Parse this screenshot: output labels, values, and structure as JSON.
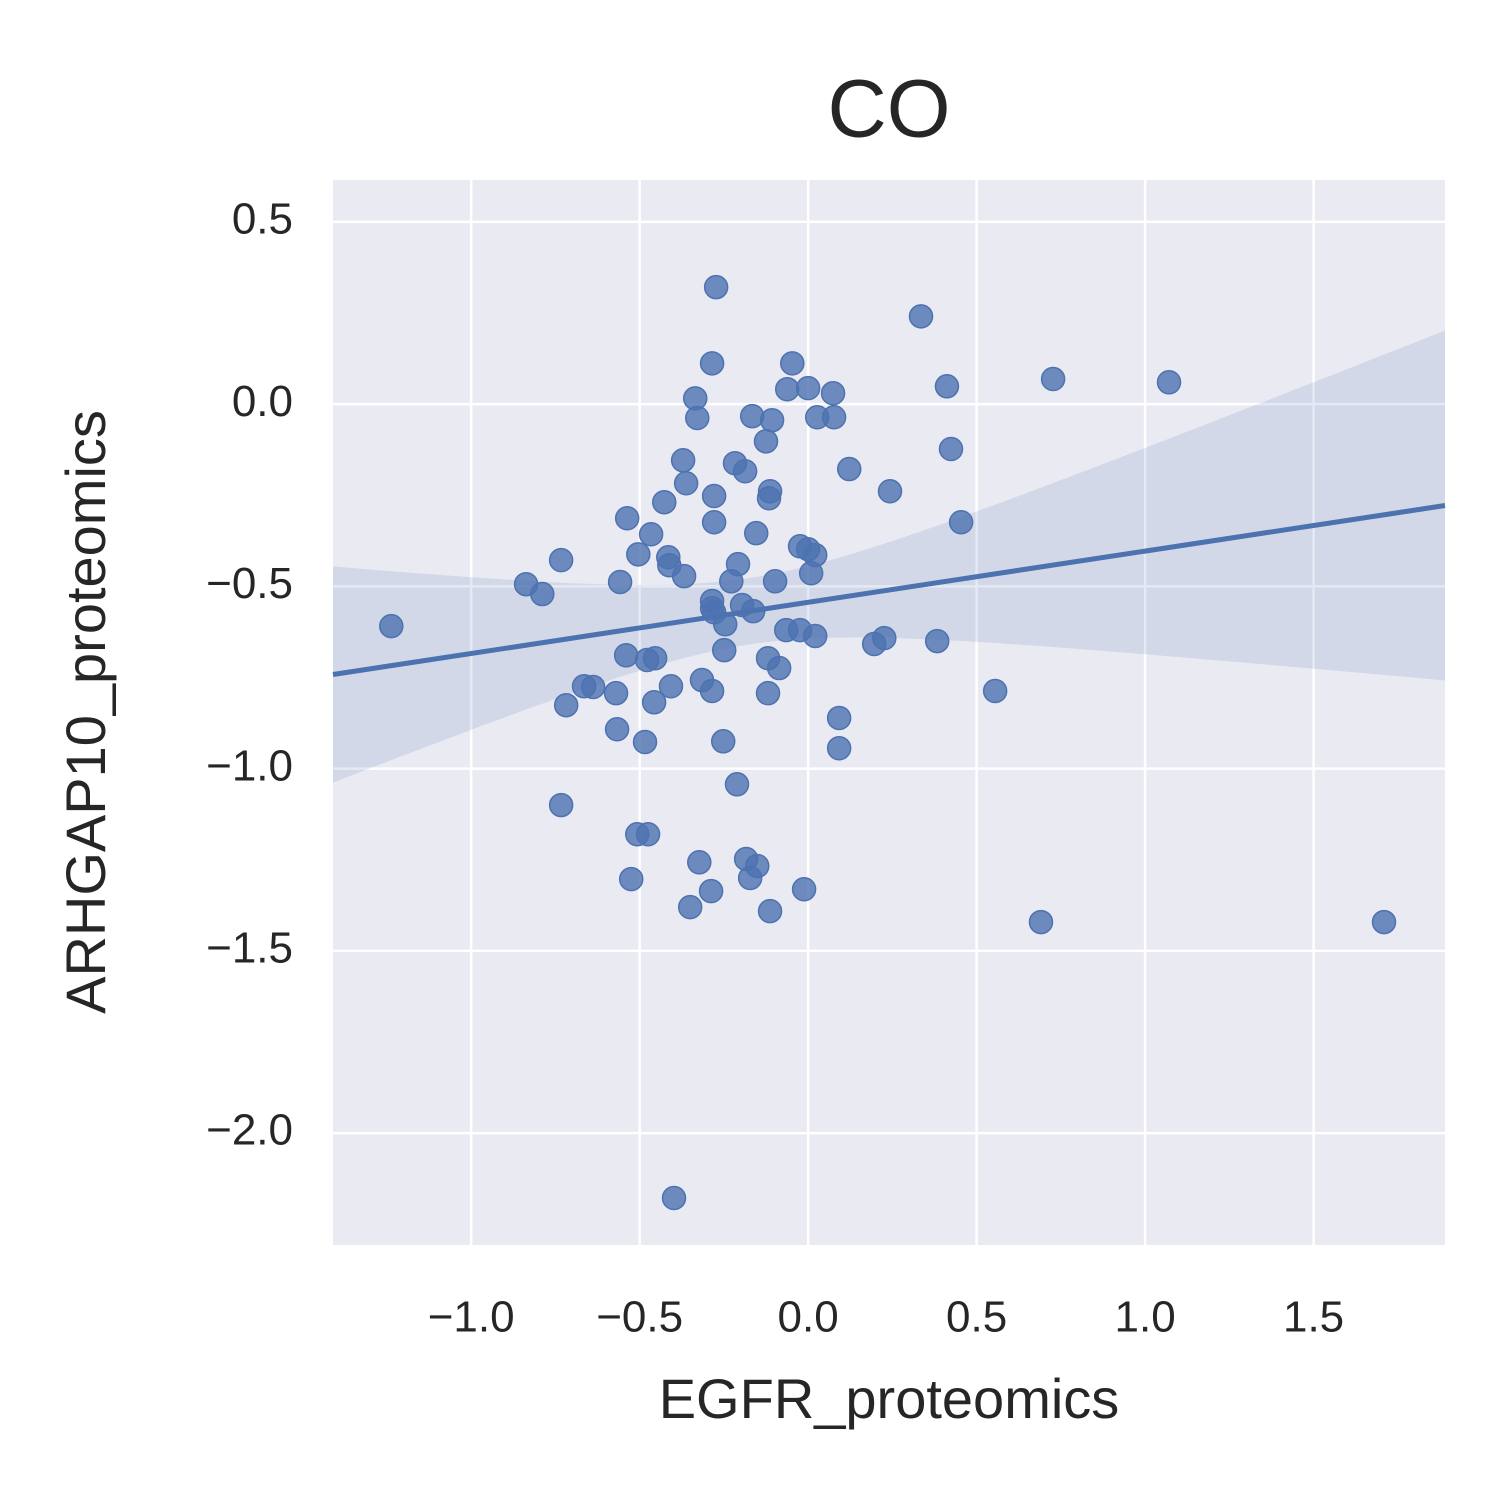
{
  "chart_data": {
    "type": "scatter",
    "title": "CO",
    "x_label": "EGFR_proteomics",
    "y_label": "ARHGAP10_proteomics",
    "color": "#4c72b0",
    "background": "#eaeaf2",
    "grid": true,
    "regression": true,
    "confidence_band": true,
    "xlim": [
      -1.41,
      1.89
    ],
    "ylim": [
      -2.307,
      0.615
    ],
    "xticks": [
      {
        "value": -1.0,
        "label": "−1.0"
      },
      {
        "value": -0.5,
        "label": "−0.5"
      },
      {
        "value": 0.0,
        "label": "0.0"
      },
      {
        "value": 0.5,
        "label": "0.5"
      },
      {
        "value": 1.0,
        "label": "1.0"
      },
      {
        "value": 1.5,
        "label": "1.5"
      }
    ],
    "yticks": [
      {
        "value": 0.5,
        "label": "0.5"
      },
      {
        "value": 0.0,
        "label": "0.0"
      },
      {
        "value": -0.5,
        "label": "−0.5"
      },
      {
        "value": -1.0,
        "label": "−1.0"
      },
      {
        "value": -1.5,
        "label": "−1.5"
      },
      {
        "value": -2.0,
        "label": "−2.0"
      }
    ],
    "x": [
      -1.237,
      -0.273,
      0.335,
      -0.285,
      -0.047,
      -0.062,
      0,
      0.074,
      0.412,
      0.727,
      1.071,
      -0.335,
      -0.329,
      -0.166,
      -0.107,
      0.027,
      0.077,
      -0.125,
      0.424,
      -0.371,
      -0.217,
      -0.187,
      0.122,
      -0.362,
      -0.113,
      -0.116,
      0.243,
      -0.279,
      -0.427,
      -0.537,
      -0.279,
      0.454,
      -0.154,
      -0.466,
      -0.024,
      0,
      0.021,
      -0.504,
      -0.415,
      -0.733,
      -0.412,
      -0.208,
      0.009,
      -0.368,
      -0.228,
      -0.098,
      -0.558,
      -0.837,
      -0.789,
      -0.285,
      -0.285,
      -0.196,
      -0.163,
      -0.279,
      -0.246,
      -0.065,
      -0.024,
      0.021,
      0.226,
      0.196,
      0.383,
      -0.249,
      -0.54,
      -0.454,
      -0.478,
      -0.119,
      -0.086,
      -0.315,
      -0.665,
      -0.638,
      -0.407,
      -0.285,
      -0.57,
      0.555,
      -0.119,
      -0.457,
      -0.718,
      0.092,
      -0.567,
      -0.484,
      -0.252,
      0.092,
      -0.211,
      -0.733,
      -0.507,
      -0.475,
      -0.184,
      -0.323,
      -0.151,
      -0.525,
      -0.172,
      -0.288,
      -0.012,
      -0.35,
      -0.113,
      0.691,
      1.709,
      -0.398
    ],
    "values": [
      -0.609,
      0.321,
      0.241,
      0.112,
      0.112,
      0.041,
      0.044,
      0.03,
      0.049,
      0.069,
      0.06,
      0.016,
      -0.038,
      -0.033,
      -0.044,
      -0.036,
      -0.036,
      -0.102,
      -0.123,
      -0.154,
      -0.162,
      -0.184,
      -0.178,
      -0.217,
      -0.239,
      -0.258,
      -0.239,
      -0.252,
      -0.269,
      -0.313,
      -0.324,
      -0.324,
      -0.354,
      -0.357,
      -0.39,
      -0.398,
      -0.414,
      -0.412,
      -0.42,
      -0.428,
      -0.442,
      -0.439,
      -0.464,
      -0.472,
      -0.486,
      -0.486,
      -0.488,
      -0.494,
      -0.521,
      -0.54,
      -0.56,
      -0.551,
      -0.568,
      -0.571,
      -0.604,
      -0.62,
      -0.62,
      -0.636,
      -0.642,
      -0.658,
      -0.65,
      -0.675,
      -0.689,
      -0.697,
      -0.702,
      -0.697,
      -0.724,
      -0.757,
      -0.774,
      -0.776,
      -0.774,
      -0.787,
      -0.793,
      -0.787,
      -0.793,
      -0.818,
      -0.826,
      -0.861,
      -0.892,
      -0.927,
      -0.925,
      -0.944,
      -1.043,
      -1.1,
      -1.18,
      -1.18,
      -1.248,
      -1.257,
      -1.267,
      -1.303,
      -1.3,
      -1.336,
      -1.331,
      -1.38,
      -1.391,
      -1.421,
      -1.421,
      -2.178
    ]
  }
}
